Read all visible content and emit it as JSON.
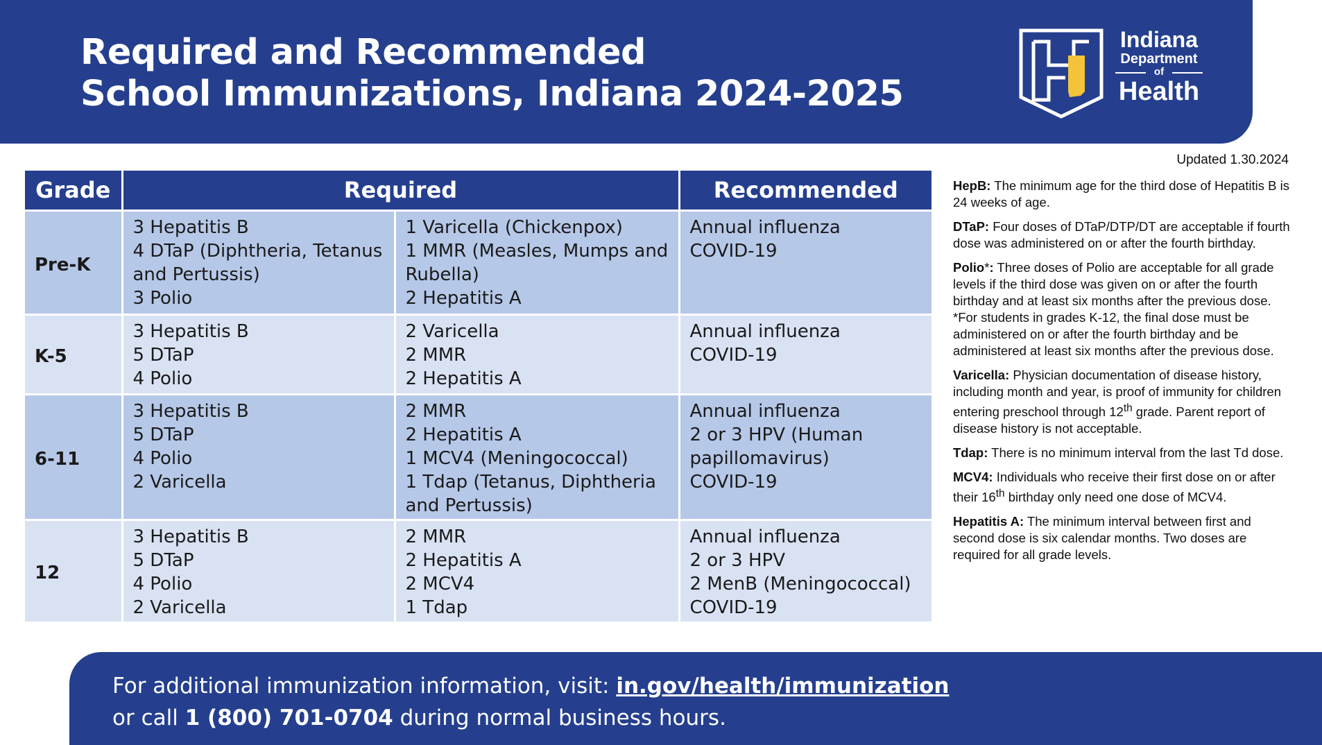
{
  "header": {
    "title_line1": "Required and Recommended",
    "title_line2": "School Immunizations, Indiana 2024-2025",
    "logo": {
      "line1": "Indiana",
      "line2": "Department",
      "line3": "of",
      "line4": "Health",
      "icon": "indiana-h-shield-icon"
    },
    "brand_color": "#253f8e"
  },
  "updated": "Updated 1.30.2024",
  "table": {
    "headers": [
      "Grade",
      "Required",
      "Recommended"
    ],
    "rows": [
      {
        "grade": "Pre-K",
        "req_a": [
          "3 Hepatitis B",
          "4 DTaP (Diphtheria, Tetanus and Pertussis)",
          "3 Polio"
        ],
        "req_b": [
          "1 Varicella (Chickenpox)",
          "1 MMR (Measles, Mumps and Rubella)",
          "2 Hepatitis A"
        ],
        "rec": [
          "Annual influenza",
          "COVID-19"
        ]
      },
      {
        "grade": "K-5",
        "req_a": [
          "3 Hepatitis B",
          "5 DTaP",
          "4 Polio"
        ],
        "req_b": [
          "2 Varicella",
          "2 MMR",
          "2 Hepatitis A"
        ],
        "rec": [
          "Annual influenza",
          "COVID-19"
        ]
      },
      {
        "grade": "6-11",
        "req_a": [
          "3 Hepatitis B",
          "5 DTaP",
          "4 Polio",
          "2 Varicella"
        ],
        "req_b": [
          "2 MMR",
          "2 Hepatitis A",
          "1 MCV4 (Meningococcal)",
          "1 Tdap (Tetanus, Diphtheria and Pertussis)"
        ],
        "rec": [
          "Annual influenza",
          "2 or 3 HPV (Human papillomavirus)",
          "COVID-19"
        ]
      },
      {
        "grade": "12",
        "req_a": [
          "3 Hepatitis B",
          "5 DTaP",
          "4 Polio",
          "2 Varicella"
        ],
        "req_b": [
          "2 MMR",
          "2 Hepatitis A",
          "2 MCV4",
          "1 Tdap"
        ],
        "rec": [
          "Annual influenza",
          "2 or 3 HPV",
          "2 MenB (Meningococcal)",
          "COVID-19"
        ]
      }
    ]
  },
  "notes": {
    "hepb": {
      "label": "HepB:",
      "text": " The minimum age for the third dose of Hepatitis B is 24 weeks of age."
    },
    "dtap": {
      "label": "DTaP:",
      "text": " Four doses of DTaP/DTP/DT are acceptable if fourth dose was administered on or after the fourth birthday."
    },
    "polio": {
      "label": "Polio",
      "star": "*",
      "colon": ":",
      "text": " Three doses of Polio are acceptable for all grade levels if the third dose was given on or after the fourth birthday and at least six months after the previous dose.",
      "text2": "*For students in grades K-12, the final dose must be administered on or after the fourth birthday and be administered at least six months after the previous dose."
    },
    "varicella": {
      "label": "Varicella:",
      "text_a": " Physician documentation of disease history, including month and year, is proof of immunity for children entering preschool through 12",
      "sup": "th",
      "text_b": " grade. Parent report of disease history is not acceptable."
    },
    "tdap": {
      "label": "Tdap:",
      "text": " There is no minimum interval from the last Td dose."
    },
    "mcv4": {
      "label": "MCV4:",
      "text_a": " Individuals who receive their first dose on or after their 16",
      "sup": "th",
      "text_b": " birthday only need one dose of MCV4."
    },
    "hepa": {
      "label": "Hepatitis A:",
      "text": " The minimum interval between first and second dose is six calendar months. Two doses are required for all grade levels."
    }
  },
  "footer": {
    "line1_prefix": "For additional immunization information, visit: ",
    "url": "in.gov/health/immunization",
    "line2_prefix": "or call ",
    "phone": "1 (800) 701-0704",
    "line2_suffix": " during normal business hours."
  }
}
